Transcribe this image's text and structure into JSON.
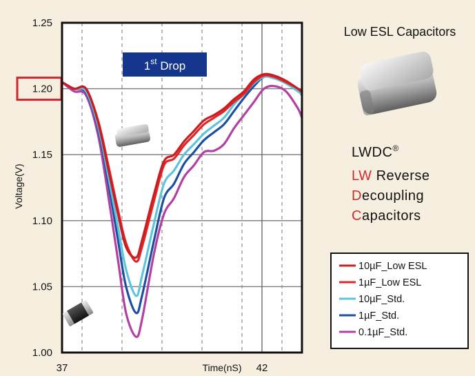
{
  "chart_data": {
    "type": "line",
    "xlabel": "Time(nS)",
    "ylabel": "Voltage(V)",
    "xlim": [
      37,
      43
    ],
    "ylim": [
      1.0,
      1.25
    ],
    "x_tick_labels": [
      "37",
      "42"
    ],
    "x_ticks": [
      37,
      42
    ],
    "y_ticks": [
      1.0,
      1.05,
      1.1,
      1.15,
      1.2,
      1.25
    ],
    "y_tick_labels": [
      "1.00",
      "1.05",
      "1.10",
      "1.15",
      "1.20",
      "1.25"
    ],
    "highlighted_y_tick": "1.20",
    "grid": true,
    "legend_position": "bottom-right",
    "annotation": {
      "main": "1",
      "sup": "st",
      "rest": " Drop"
    },
    "series": [
      {
        "name": "10µF_Low ESL",
        "color": "#c91d20",
        "x": [
          37,
          37.3,
          37.6,
          37.9,
          38.15,
          38.4,
          38.6,
          38.85,
          39.0,
          39.3,
          39.55,
          39.8,
          40.05,
          40.3,
          40.55,
          40.8,
          41.05,
          41.3,
          41.55,
          41.8,
          42.05,
          42.3,
          42.6,
          42.9,
          43.0
        ],
        "y": [
          1.205,
          1.2,
          1.2,
          1.175,
          1.14,
          1.105,
          1.08,
          1.072,
          1.085,
          1.12,
          1.145,
          1.15,
          1.16,
          1.168,
          1.176,
          1.18,
          1.185,
          1.192,
          1.198,
          1.207,
          1.211,
          1.21,
          1.206,
          1.2,
          1.198
        ]
      },
      {
        "name": "1µF_Low ESL",
        "color": "#e0262b",
        "x": [
          37,
          37.3,
          37.6,
          37.9,
          38.15,
          38.4,
          38.6,
          38.85,
          39.0,
          39.3,
          39.55,
          39.8,
          40.05,
          40.3,
          40.55,
          40.8,
          41.05,
          41.3,
          41.55,
          41.8,
          42.05,
          42.3,
          42.6,
          42.9,
          43.0
        ],
        "y": [
          1.205,
          1.2,
          1.2,
          1.176,
          1.143,
          1.108,
          1.083,
          1.069,
          1.08,
          1.115,
          1.142,
          1.147,
          1.157,
          1.165,
          1.173,
          1.178,
          1.183,
          1.19,
          1.196,
          1.205,
          1.21,
          1.209,
          1.205,
          1.2,
          1.197
        ]
      },
      {
        "name": "10µF_Std.",
        "color": "#5ec4dc",
        "x": [
          37,
          37.3,
          37.6,
          37.9,
          38.15,
          38.4,
          38.6,
          38.85,
          39.0,
          39.3,
          39.55,
          39.8,
          40.05,
          40.3,
          40.55,
          40.8,
          41.05,
          41.3,
          41.55,
          41.8,
          42.05,
          42.3,
          42.6,
          42.9,
          43.0
        ],
        "y": [
          1.205,
          1.2,
          1.198,
          1.172,
          1.135,
          1.095,
          1.063,
          1.043,
          1.058,
          1.098,
          1.128,
          1.138,
          1.15,
          1.158,
          1.166,
          1.172,
          1.178,
          1.188,
          1.196,
          1.204,
          1.209,
          1.208,
          1.204,
          1.198,
          1.196
        ]
      },
      {
        "name": "1µF_Std.",
        "color": "#1d4fa0",
        "x": [
          37,
          37.3,
          37.6,
          37.9,
          38.15,
          38.4,
          38.6,
          38.85,
          39.0,
          39.3,
          39.55,
          39.8,
          40.05,
          40.3,
          40.55,
          40.8,
          41.05,
          41.3,
          41.55,
          41.8,
          42.05,
          42.3,
          42.6,
          42.9,
          43.0
        ],
        "y": [
          1.205,
          1.2,
          1.197,
          1.17,
          1.13,
          1.085,
          1.05,
          1.03,
          1.043,
          1.085,
          1.117,
          1.128,
          1.143,
          1.152,
          1.161,
          1.167,
          1.173,
          1.183,
          1.193,
          1.202,
          1.209,
          1.208,
          1.205,
          1.199,
          1.195
        ]
      },
      {
        "name": "0.1µF_Std.",
        "color": "#b33fa3",
        "x": [
          37,
          37.3,
          37.6,
          37.9,
          38.15,
          38.4,
          38.6,
          38.85,
          39.0,
          39.3,
          39.55,
          39.8,
          40.05,
          40.3,
          40.55,
          40.8,
          41.05,
          41.3,
          41.55,
          41.8,
          42.05,
          42.3,
          42.6,
          42.9,
          43.0
        ],
        "y": [
          1.205,
          1.198,
          1.195,
          1.165,
          1.12,
          1.07,
          1.03,
          1.012,
          1.025,
          1.075,
          1.105,
          1.117,
          1.133,
          1.142,
          1.152,
          1.153,
          1.158,
          1.17,
          1.18,
          1.19,
          1.2,
          1.202,
          1.198,
          1.185,
          1.178
        ]
      }
    ]
  },
  "side_panel": {
    "title": "Low ESL Capacitors",
    "brand": "LWDC",
    "brand_mark": "®",
    "acronym": [
      {
        "hl": "LW",
        "rest": " Reverse"
      },
      {
        "hl": "D",
        "rest": "ecoupling"
      },
      {
        "hl": "C",
        "rest": "apacitors"
      }
    ]
  },
  "colors": {
    "background": "#f6efe0",
    "plot_bg": "#ffffff",
    "grid": "#7a7a7a",
    "highlight_box": "#d4232b",
    "drop_box": "#14368c"
  },
  "icons": [
    "low-esl-chip-icon",
    "small-low-esl-chip-icon",
    "standard-capacitor-icon"
  ]
}
